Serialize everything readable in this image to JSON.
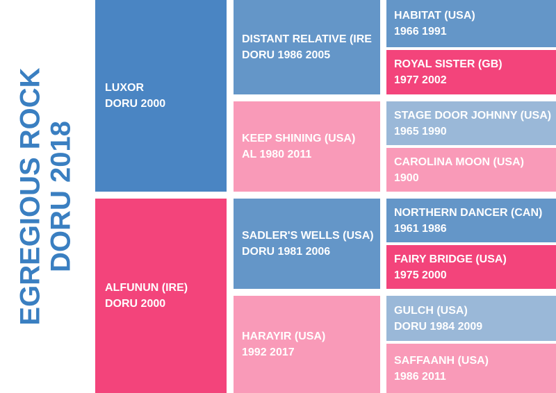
{
  "subject": {
    "name": "EGREGIOUS ROCK",
    "details": "DORU 2018"
  },
  "pedigree": {
    "sire": {
      "name": "LUXOR",
      "details": "DORU 2000"
    },
    "dam": {
      "name": "ALFUNUN (IRE)",
      "details": "DORU 2000"
    },
    "sire_sire": {
      "name": "DISTANT RELATIVE (IRE",
      "details": "DORU 1986 2005"
    },
    "sire_dam": {
      "name": "KEEP SHINING (USA)",
      "details": "AL 1980 2011"
    },
    "dam_sire": {
      "name": "SADLER'S WELLS (USA)",
      "details": "DORU 1981 2006"
    },
    "dam_dam": {
      "name": "HARAYIR (USA)",
      "details": "1992 2017"
    },
    "sire_sire_sire": {
      "name": "HABITAT (USA)",
      "details": "1966 1991"
    },
    "sire_sire_dam": {
      "name": "ROYAL SISTER (GB)",
      "details": "1977 2002"
    },
    "sire_dam_sire": {
      "name": "STAGE DOOR JOHNNY (USA)",
      "details": "1965 1990"
    },
    "sire_dam_dam": {
      "name": "CAROLINA MOON (USA)",
      "details": "1900"
    },
    "dam_sire_sire": {
      "name": "NORTHERN DANCER (CAN)",
      "details": "1961 1986"
    },
    "dam_sire_dam": {
      "name": "FAIRY BRIDGE (USA)",
      "details": "1975 2000"
    },
    "dam_dam_sire": {
      "name": "GULCH (USA)",
      "details": "DORU 1984 2009"
    },
    "dam_dam_dam": {
      "name": "SAFFAANH (USA)",
      "details": "1986 2011"
    }
  },
  "colors": {
    "title": "#3a7fc1",
    "blue_dark": "#4a85c3",
    "blue_mid": "#6496c8",
    "blue_light": "#9ab8d8",
    "pink_strong": "#f3447b",
    "pink_mid": "#f5739a",
    "pink_light": "#f99ab8"
  }
}
